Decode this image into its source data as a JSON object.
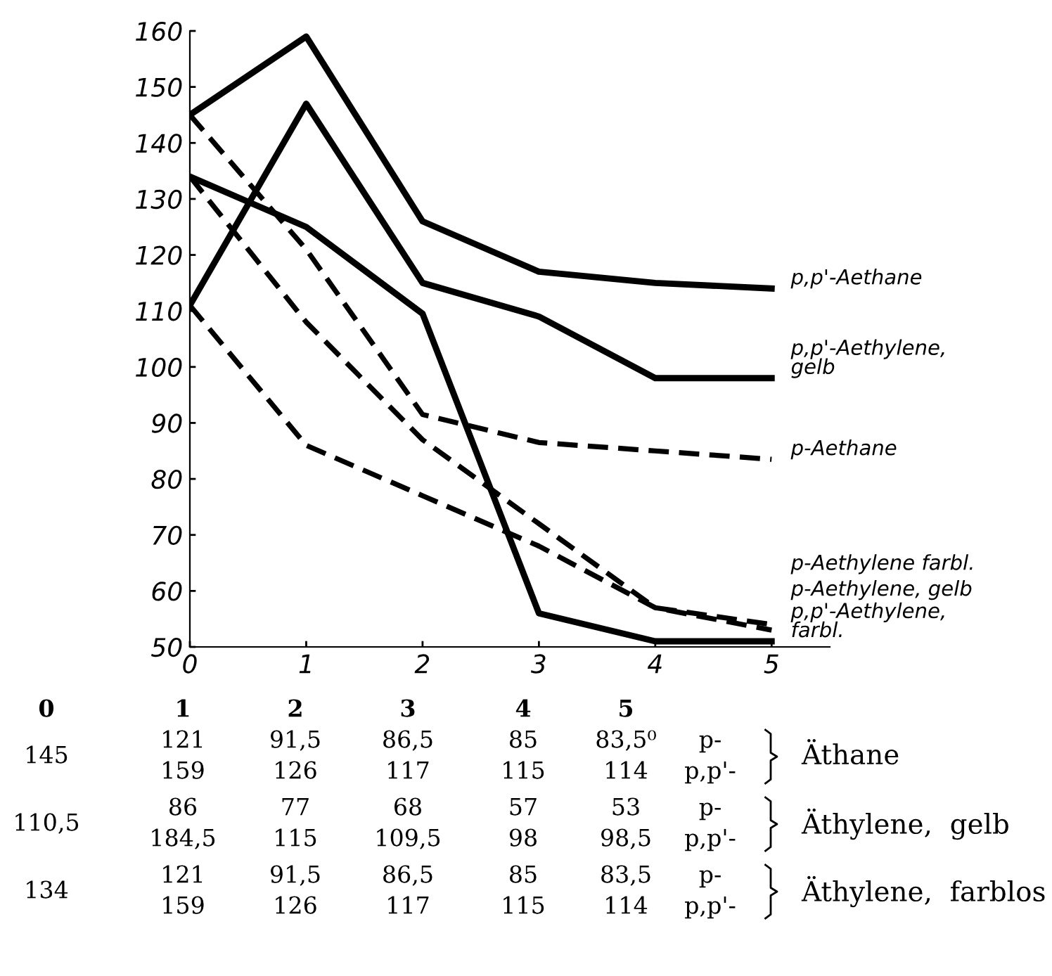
{
  "chart_data": {
    "type": "line",
    "x": [
      0,
      1,
      2,
      3,
      4,
      5
    ],
    "xlim": [
      0,
      5.5
    ],
    "ylim": [
      50,
      160
    ],
    "xticks": [
      0,
      1,
      2,
      3,
      4,
      5
    ],
    "yticks": [
      50,
      60,
      70,
      80,
      90,
      100,
      110,
      120,
      130,
      140,
      150,
      160
    ],
    "grid": false,
    "legend": false,
    "marker": "none",
    "series": [
      {
        "name": "p,p'-Aethane",
        "color": "#000000",
        "line_style": "solid",
        "values": [
          145,
          159,
          126,
          117,
          115,
          114
        ]
      },
      {
        "name": "p,p'-Aethylene,\ngelb",
        "color": "#000000",
        "line_style": "solid",
        "values": [
          111,
          147,
          115,
          109,
          98,
          98
        ]
      },
      {
        "name": "p-Aethane",
        "color": "#000000",
        "line_style": "dashed",
        "values": [
          145,
          121,
          91.5,
          86.5,
          85,
          83.5
        ]
      },
      {
        "name": "p-Aethylene farbl.",
        "color": "#000000",
        "line_style": "dashed",
        "values": [
          134,
          108,
          87,
          72,
          57,
          54
        ]
      },
      {
        "name": "p-Aethylene, gelb",
        "color": "#000000",
        "line_style": "dashed",
        "values": [
          111,
          86,
          77,
          68,
          57,
          53
        ]
      },
      {
        "name": "p,p'-Aethylene,\nfarbl.",
        "color": "#000000",
        "line_style": "solid",
        "values": [
          134,
          125,
          109.5,
          56,
          51,
          51
        ]
      }
    ],
    "annotations": [
      "0\t1\t2\t3\t4\t5",
      "145\t121\t91,5\t86,5\t85\t83,5⁰\tp-\tÄthane",
      "\t159\t126\t117\t115\t114\tp,p'-",
      "110,5\t86\t77\t68\t57\t53\tp-\tÄthylene,  gelb",
      "\t184,5\t115\t109,5\t98\t98,5\tp,p'-",
      "134\t121\t91,5\t86,5\t85\t83,5\tp-\tÄthylene,  farblos",
      "\t159\t126\t117\t115\t114\tp,p'-"
    ]
  }
}
